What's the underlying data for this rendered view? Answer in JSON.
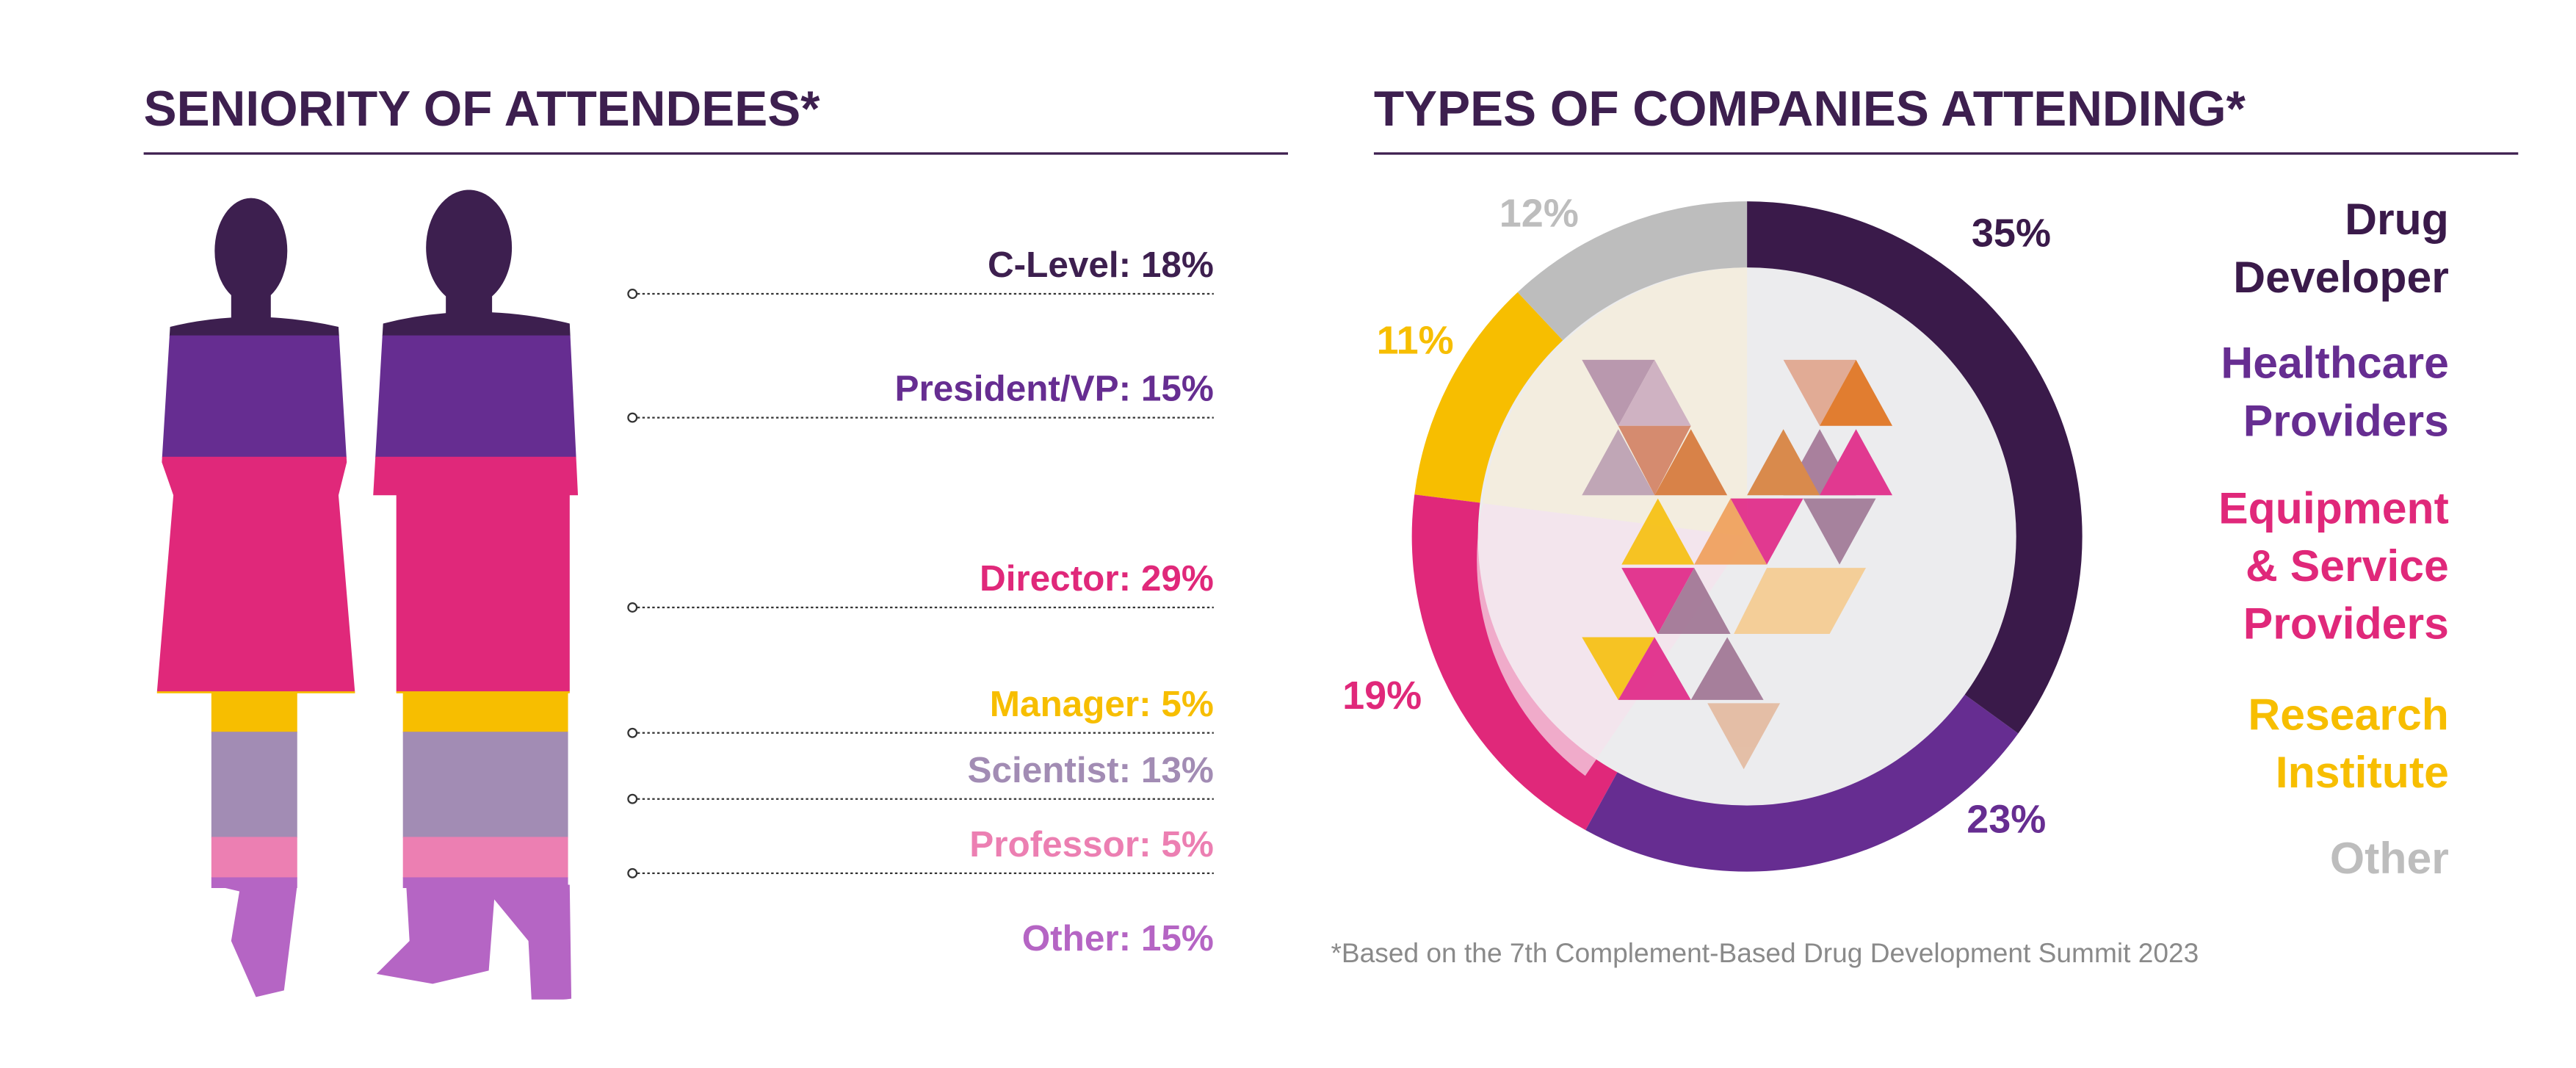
{
  "chart_data": [
    {
      "type": "stacked-figure",
      "title": "SENIORITY OF ATTENDEES*",
      "values": [
        18,
        15,
        29,
        5,
        13,
        5,
        15
      ],
      "value_labels": [
        "C-Level: 18%",
        "President/VP: 15%",
        "Director: 29%",
        "Manager: 5%",
        "Scientist: 13%",
        "Professor: 5%",
        "Other: 15%"
      ],
      "colors": [
        "#3d1f4f",
        "#662d91",
        "#e0287a",
        "#f7be00",
        "#a28cb4",
        "#ec7fb2",
        "#b565c4"
      ]
    },
    {
      "type": "donut",
      "title": "TYPES OF COMPANIES ATTENDING*",
      "categories": [
        "Drug\nDeveloper",
        "Healthcare\nProviders",
        "Equipment\n& Service\nProviders",
        "Research\nInstitute",
        "Other"
      ],
      "values": [
        35,
        23,
        19,
        11,
        12
      ],
      "value_labels": [
        "35%",
        "23%",
        "19%",
        "11%",
        "12%"
      ],
      "colors": [
        "#3a1a4a",
        "#662d91",
        "#e0287a",
        "#f7be00",
        "#bdbdbd"
      ]
    }
  ],
  "footnote": "*Based on the 7th Complement-Based Drug Development Summit 2023"
}
